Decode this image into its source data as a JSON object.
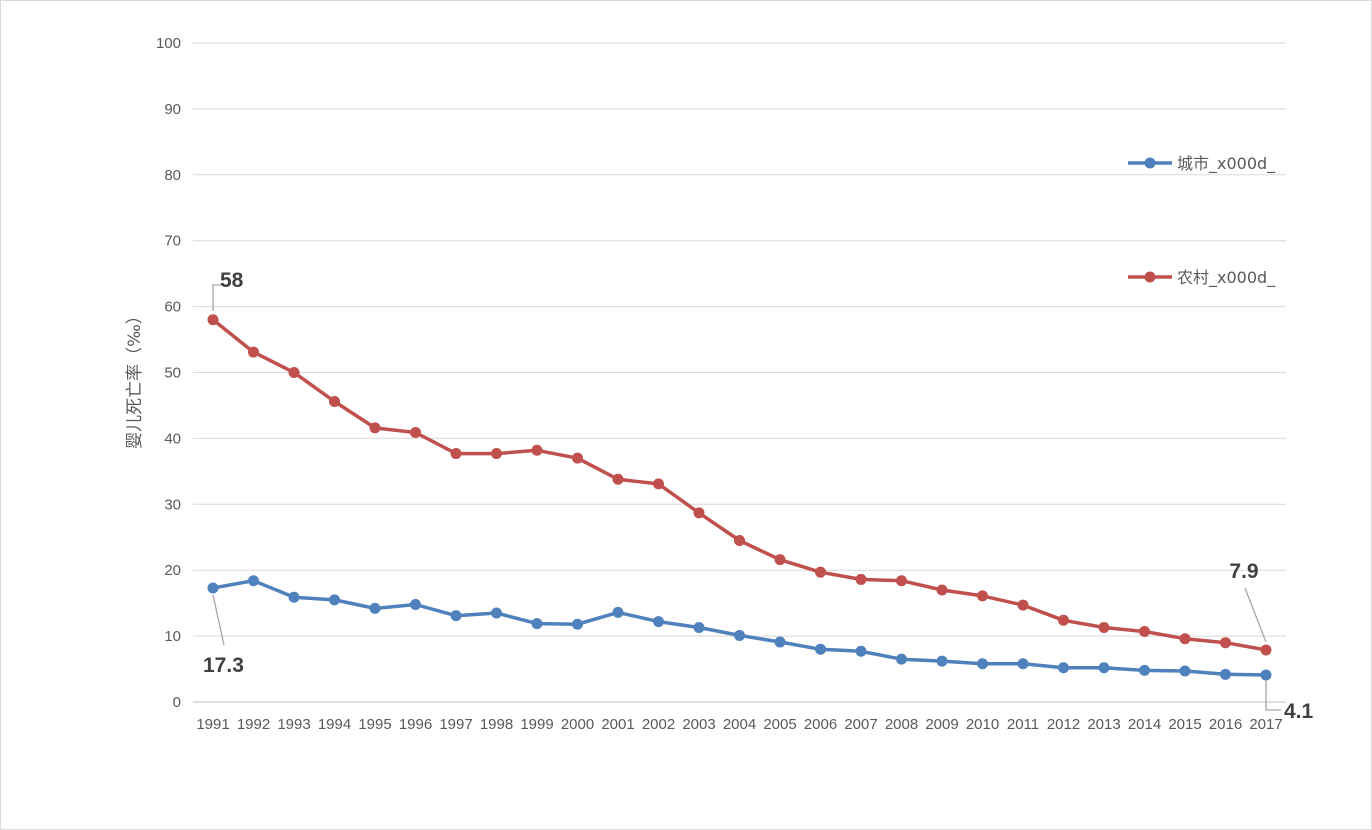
{
  "chart_data": {
    "type": "line",
    "title": "",
    "xlabel": "",
    "ylabel": "婴儿死亡率（‰）",
    "ylim": [
      0,
      100
    ],
    "yticks": [
      0,
      10,
      20,
      30,
      40,
      50,
      60,
      70,
      80,
      90,
      100
    ],
    "grid": true,
    "legend_position": "right",
    "categories": [
      "1991",
      "1992",
      "1993",
      "1994",
      "1995",
      "1996",
      "1997",
      "1998",
      "1999",
      "2000",
      "2001",
      "2002",
      "2003",
      "2004",
      "2005",
      "2006",
      "2007",
      "2008",
      "2009",
      "2010",
      "2011",
      "2012",
      "2013",
      "2014",
      "2015",
      "2016",
      "2017"
    ],
    "series": [
      {
        "name": "城市_x000d_",
        "color": "#4f81bd",
        "values": [
          17.3,
          18.4,
          15.9,
          15.5,
          14.2,
          14.8,
          13.1,
          13.5,
          11.9,
          11.8,
          13.6,
          12.2,
          11.3,
          10.1,
          9.1,
          8.0,
          7.7,
          6.5,
          6.2,
          5.8,
          5.8,
          5.2,
          5.2,
          4.8,
          4.7,
          4.2,
          4.1
        ],
        "annotations": [
          {
            "index": 0,
            "label": "17.3"
          },
          {
            "index": 26,
            "label": "4.1"
          }
        ]
      },
      {
        "name": "农村_x000d_",
        "color": "#c0504d",
        "values": [
          58.0,
          53.1,
          50.0,
          45.6,
          41.6,
          40.9,
          37.7,
          37.7,
          38.2,
          37.0,
          33.8,
          33.1,
          28.7,
          24.5,
          21.6,
          19.7,
          18.6,
          18.4,
          17.0,
          16.1,
          14.7,
          12.4,
          11.3,
          10.7,
          9.6,
          9.0,
          7.9
        ],
        "annotations": [
          {
            "index": 0,
            "label": "58"
          },
          {
            "index": 26,
            "label": "7.9"
          }
        ]
      }
    ]
  }
}
